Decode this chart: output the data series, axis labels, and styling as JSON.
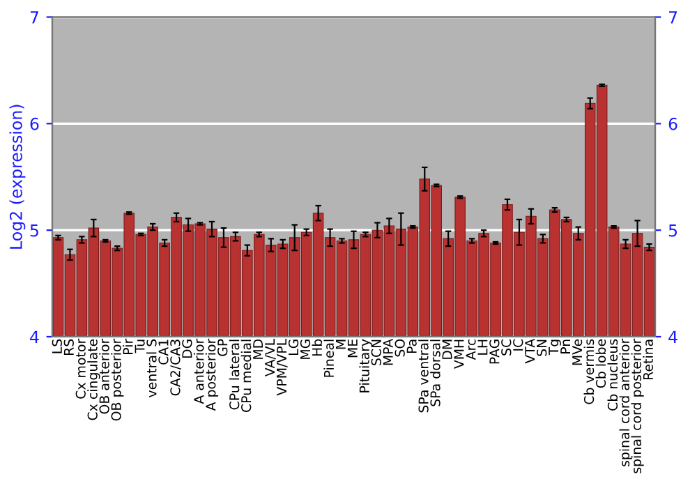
{
  "chart_data": {
    "type": "bar",
    "ylabel": "Log2 (expression)",
    "categories": [
      "LS",
      "RS",
      "Cx motor",
      "Cx cingulate",
      "OB anterior",
      "OB posterior",
      "Pir",
      "Tu",
      "ventral S",
      "CA1",
      "CA2/CA3",
      "DG",
      "A anterior",
      "A posterior",
      "GP",
      "CPu lateral",
      "CPu medial",
      "MD",
      "VA/VL",
      "VPM/VPL",
      "LG",
      "MG",
      "Hb",
      "Pineal",
      "M",
      "ME",
      "Pituitary",
      "SCN",
      "MPA",
      "SO",
      "Pa",
      "SPa ventral",
      "SPa dorsal",
      "DM",
      "VMH",
      "Arc",
      "LH",
      "PAG",
      "SC",
      "IC",
      "VTA",
      "SN",
      "Tg",
      "Pn",
      "MVe",
      "Cb vermis",
      "Cb lobe",
      "Cb nucleus",
      "spinal cord anterior",
      "spinal cord posterior",
      "Retina"
    ],
    "values": [
      4.93,
      4.77,
      4.91,
      5.02,
      4.9,
      4.83,
      5.16,
      4.96,
      5.03,
      4.88,
      5.12,
      5.05,
      5.06,
      5.01,
      4.93,
      4.94,
      4.81,
      4.96,
      4.86,
      4.87,
      4.93,
      4.98,
      5.16,
      4.93,
      4.9,
      4.91,
      4.96,
      5.0,
      5.04,
      5.01,
      5.03,
      5.48,
      5.42,
      4.92,
      5.31,
      4.9,
      4.97,
      4.88,
      5.24,
      4.98,
      5.13,
      4.92,
      5.19,
      5.1,
      4.97,
      6.19,
      6.36,
      5.03,
      4.87,
      4.97,
      4.84
    ],
    "errors": [
      0.02,
      0.05,
      0.03,
      0.08,
      0.01,
      0.02,
      0.01,
      0.01,
      0.03,
      0.03,
      0.04,
      0.06,
      0.01,
      0.07,
      0.09,
      0.04,
      0.05,
      0.02,
      0.06,
      0.04,
      0.12,
      0.03,
      0.07,
      0.08,
      0.02,
      0.08,
      0.02,
      0.07,
      0.07,
      0.15,
      0.01,
      0.11,
      0.01,
      0.07,
      0.01,
      0.02,
      0.03,
      0.01,
      0.05,
      0.12,
      0.07,
      0.04,
      0.02,
      0.02,
      0.06,
      0.05,
      0.01,
      0.01,
      0.04,
      0.12,
      0.03
    ],
    "color": "#b83232",
    "ylim": [
      4,
      7
    ],
    "yticks": [
      4,
      5,
      6,
      7
    ],
    "y2lim": [
      4,
      7
    ],
    "y2ticks": [
      4,
      5,
      6,
      7
    ],
    "grid": "y"
  }
}
